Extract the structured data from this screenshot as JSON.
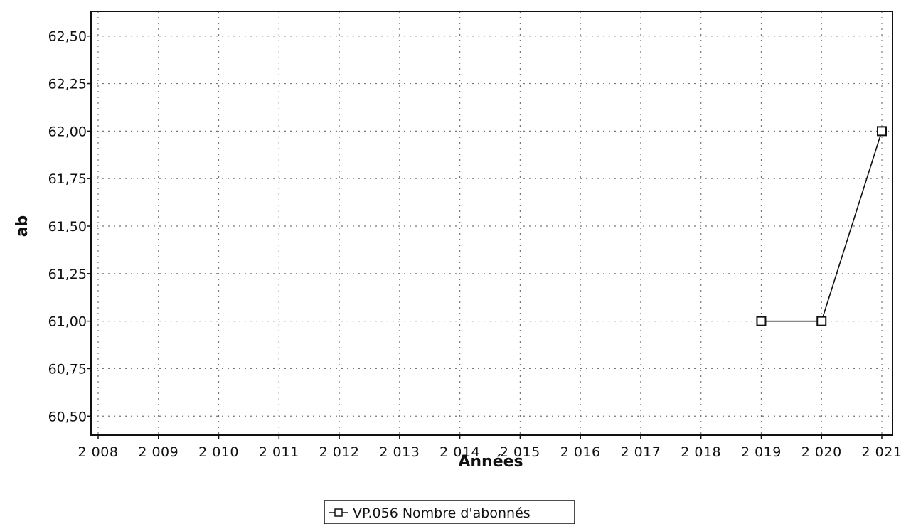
{
  "chart_data": {
    "type": "line",
    "title": "",
    "xlabel": "Années",
    "ylabel": "ab",
    "x_ticks": [
      "2 008",
      "2 009",
      "2 010",
      "2 011",
      "2 012",
      "2 013",
      "2 014",
      "2 015",
      "2 016",
      "2 017",
      "2 018",
      "2 019",
      "2 020",
      "2 021"
    ],
    "y_ticks": [
      "62,50",
      "62,25",
      "62,00",
      "61,75",
      "61,50",
      "61,25",
      "61,00",
      "60,75",
      "60,50"
    ],
    "xlim": [
      2008,
      2021
    ],
    "ylim": [
      60.4,
      62.63
    ],
    "grid": true,
    "legend_position": "bottom",
    "series": [
      {
        "name": "VP.056 Nombre d'abonnés",
        "marker": "square",
        "color": "#111111",
        "x": [
          2019,
          2020,
          2021
        ],
        "y": [
          61.0,
          61.0,
          62.0
        ]
      }
    ]
  }
}
